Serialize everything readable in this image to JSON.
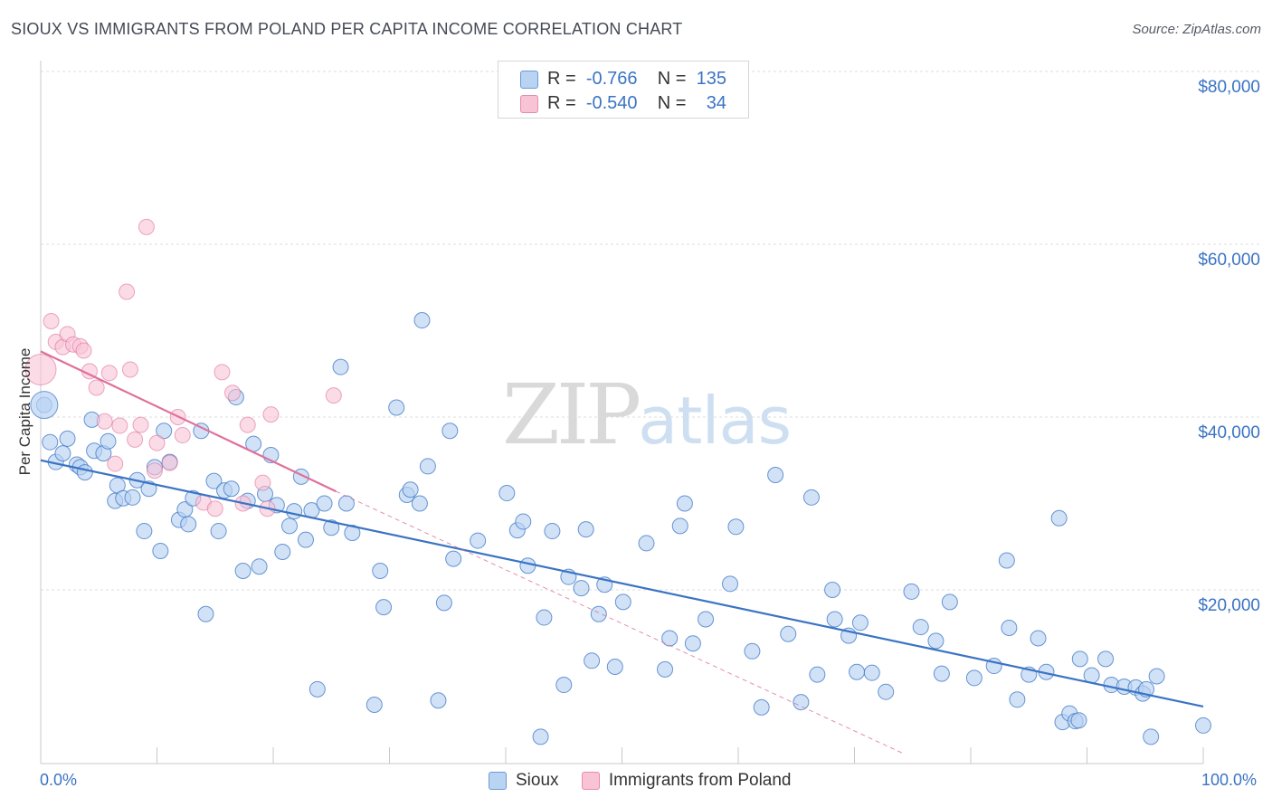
{
  "title": "SIOUX VS IMMIGRANTS FROM POLAND PER CAPITA INCOME CORRELATION CHART",
  "source": "Source: ZipAtlas.com",
  "watermark": {
    "zip": "ZIP",
    "atlas": "atlas"
  },
  "legend_top": {
    "rows": [
      {
        "r_label": "R =",
        "r_value": "-0.766",
        "n_label": "N =",
        "n_value": "135"
      },
      {
        "r_label": "R =",
        "r_value": "-0.540",
        "n_label": "N =",
        "n_value": "34"
      }
    ]
  },
  "colors": {
    "sioux": "#3a74c4",
    "sioux_fill": "#b9d3f3",
    "poland": "#e0709a",
    "poland_fill": "#f8c3d5",
    "label_blue": "#3a74c4"
  },
  "chart_data": {
    "type": "scatter",
    "title": "SIOUX VS IMMIGRANTS FROM POLAND PER CAPITA INCOME CORRELATION CHART",
    "xlabel": "",
    "ylabel": "Per Capita Income",
    "xlim": [
      0,
      100
    ],
    "ylim": [
      2000,
      82000
    ],
    "x_tick_labels": [
      "0.0%",
      "100.0%"
    ],
    "y_ticks": [
      20000,
      40000,
      60000,
      80000
    ],
    "y_tick_labels": [
      "$20,000",
      "$40,000",
      "$60,000",
      "$80,000"
    ],
    "grid": true,
    "legend_position": "bottom",
    "series": [
      {
        "name": "Sioux",
        "r": -0.766,
        "n": 135,
        "trend": {
          "x": [
            0,
            100
          ],
          "y": [
            35000,
            6500
          ]
        },
        "points": [
          [
            0.3,
            41400
          ],
          [
            0.8,
            37100
          ],
          [
            1.3,
            34800
          ],
          [
            1.9,
            35800
          ],
          [
            2.3,
            37500
          ],
          [
            3.1,
            34500
          ],
          [
            3.4,
            34200
          ],
          [
            3.8,
            33600
          ],
          [
            4.4,
            39700
          ],
          [
            4.6,
            36100
          ],
          [
            5.4,
            35800
          ],
          [
            5.8,
            37200
          ],
          [
            6.4,
            30300
          ],
          [
            6.6,
            32100
          ],
          [
            7.1,
            30600
          ],
          [
            7.9,
            30700
          ],
          [
            8.3,
            32700
          ],
          [
            8.9,
            26800
          ],
          [
            9.3,
            31700
          ],
          [
            9.8,
            34200
          ],
          [
            10.3,
            24500
          ],
          [
            10.6,
            38400
          ],
          [
            11.1,
            34800
          ],
          [
            11.9,
            28100
          ],
          [
            12.4,
            29300
          ],
          [
            12.7,
            27600
          ],
          [
            13.1,
            30600
          ],
          [
            13.8,
            38400
          ],
          [
            14.2,
            17200
          ],
          [
            14.9,
            32600
          ],
          [
            15.3,
            26800
          ],
          [
            15.8,
            31500
          ],
          [
            16.4,
            31700
          ],
          [
            16.8,
            42300
          ],
          [
            17.4,
            22200
          ],
          [
            17.8,
            30300
          ],
          [
            18.3,
            36900
          ],
          [
            18.8,
            22700
          ],
          [
            19.3,
            31100
          ],
          [
            19.8,
            35600
          ],
          [
            20.3,
            29800
          ],
          [
            20.8,
            24400
          ],
          [
            21.4,
            27400
          ],
          [
            21.8,
            29100
          ],
          [
            22.4,
            33100
          ],
          [
            22.8,
            25800
          ],
          [
            23.3,
            29200
          ],
          [
            23.8,
            8500
          ],
          [
            24.4,
            30000
          ],
          [
            25.0,
            27200
          ],
          [
            25.8,
            45800
          ],
          [
            26.3,
            30000
          ],
          [
            26.8,
            26600
          ],
          [
            28.7,
            6700
          ],
          [
            29.2,
            22200
          ],
          [
            29.5,
            18000
          ],
          [
            30.6,
            41100
          ],
          [
            31.5,
            31000
          ],
          [
            31.8,
            31600
          ],
          [
            32.6,
            30000
          ],
          [
            32.8,
            51200
          ],
          [
            33.3,
            34300
          ],
          [
            34.2,
            7200
          ],
          [
            34.7,
            18500
          ],
          [
            35.2,
            38400
          ],
          [
            35.5,
            23600
          ],
          [
            37.6,
            25700
          ],
          [
            40.1,
            31200
          ],
          [
            41.0,
            26900
          ],
          [
            41.5,
            27900
          ],
          [
            41.9,
            22800
          ],
          [
            43.0,
            3000
          ],
          [
            43.3,
            16800
          ],
          [
            44.0,
            26800
          ],
          [
            45.0,
            9000
          ],
          [
            45.4,
            21500
          ],
          [
            46.5,
            20200
          ],
          [
            46.9,
            27000
          ],
          [
            47.4,
            11800
          ],
          [
            48.0,
            17200
          ],
          [
            48.5,
            20600
          ],
          [
            49.4,
            11100
          ],
          [
            50.1,
            18600
          ],
          [
            52.1,
            25400
          ],
          [
            53.7,
            10800
          ],
          [
            54.1,
            14400
          ],
          [
            55.0,
            27400
          ],
          [
            55.4,
            30000
          ],
          [
            56.1,
            13800
          ],
          [
            57.2,
            16600
          ],
          [
            59.3,
            20700
          ],
          [
            59.8,
            27300
          ],
          [
            61.2,
            12900
          ],
          [
            62.0,
            6400
          ],
          [
            63.2,
            33300
          ],
          [
            64.3,
            14900
          ],
          [
            65.4,
            7000
          ],
          [
            66.3,
            30700
          ],
          [
            66.8,
            10200
          ],
          [
            68.1,
            20000
          ],
          [
            68.3,
            16600
          ],
          [
            69.5,
            14700
          ],
          [
            70.2,
            10500
          ],
          [
            70.5,
            16200
          ],
          [
            71.5,
            10400
          ],
          [
            72.7,
            8200
          ],
          [
            74.9,
            19800
          ],
          [
            75.7,
            15700
          ],
          [
            77.0,
            14100
          ],
          [
            77.5,
            10300
          ],
          [
            78.2,
            18600
          ],
          [
            80.3,
            9800
          ],
          [
            82.0,
            11200
          ],
          [
            83.1,
            23400
          ],
          [
            83.3,
            15600
          ],
          [
            84.0,
            7300
          ],
          [
            85.0,
            10200
          ],
          [
            85.8,
            14400
          ],
          [
            86.5,
            10500
          ],
          [
            87.6,
            28300
          ],
          [
            87.9,
            4700
          ],
          [
            88.5,
            5700
          ],
          [
            89.0,
            4800
          ],
          [
            89.3,
            4900
          ],
          [
            89.4,
            12000
          ],
          [
            90.4,
            10100
          ],
          [
            91.6,
            12000
          ],
          [
            92.1,
            9000
          ],
          [
            93.2,
            8800
          ],
          [
            94.2,
            8700
          ],
          [
            94.8,
            8000
          ],
          [
            95.1,
            8500
          ],
          [
            95.5,
            3000
          ],
          [
            96.0,
            10000
          ],
          [
            100.0,
            4300
          ]
        ]
      },
      {
        "name": "Immigrants from Poland",
        "r": -0.54,
        "n": 34,
        "trend": {
          "x": [
            0,
            25.4
          ],
          "y": [
            47600,
            31400
          ]
        },
        "trend_ext": {
          "x": [
            25.4,
            74.3
          ],
          "y": [
            31400,
            1000
          ]
        },
        "points": [
          [
            0.0,
            45500
          ],
          [
            0.9,
            51100
          ],
          [
            1.3,
            48700
          ],
          [
            1.9,
            48100
          ],
          [
            2.3,
            49600
          ],
          [
            2.8,
            48400
          ],
          [
            3.4,
            48200
          ],
          [
            3.7,
            47700
          ],
          [
            4.2,
            45300
          ],
          [
            4.8,
            43400
          ],
          [
            5.5,
            39500
          ],
          [
            5.9,
            45100
          ],
          [
            6.4,
            34600
          ],
          [
            6.8,
            39000
          ],
          [
            7.4,
            54500
          ],
          [
            7.7,
            45500
          ],
          [
            8.1,
            37400
          ],
          [
            8.6,
            39100
          ],
          [
            9.1,
            62000
          ],
          [
            9.8,
            33800
          ],
          [
            10.0,
            37000
          ],
          [
            11.1,
            34700
          ],
          [
            11.8,
            40000
          ],
          [
            12.2,
            37900
          ],
          [
            14.0,
            30100
          ],
          [
            15.0,
            29400
          ],
          [
            15.6,
            45200
          ],
          [
            16.5,
            42800
          ],
          [
            17.4,
            30000
          ],
          [
            17.8,
            39100
          ],
          [
            19.1,
            32400
          ],
          [
            19.5,
            29400
          ],
          [
            19.8,
            40300
          ],
          [
            25.2,
            42500
          ]
        ]
      }
    ]
  },
  "axis": {
    "y_title": "Per Capita Income",
    "x_left": "0.0%",
    "x_right": "100.0%",
    "y_labels": [
      "$80,000",
      "$60,000",
      "$40,000",
      "$20,000"
    ]
  },
  "legend_bottom": {
    "items": [
      "Sioux",
      "Immigrants from Poland"
    ]
  }
}
